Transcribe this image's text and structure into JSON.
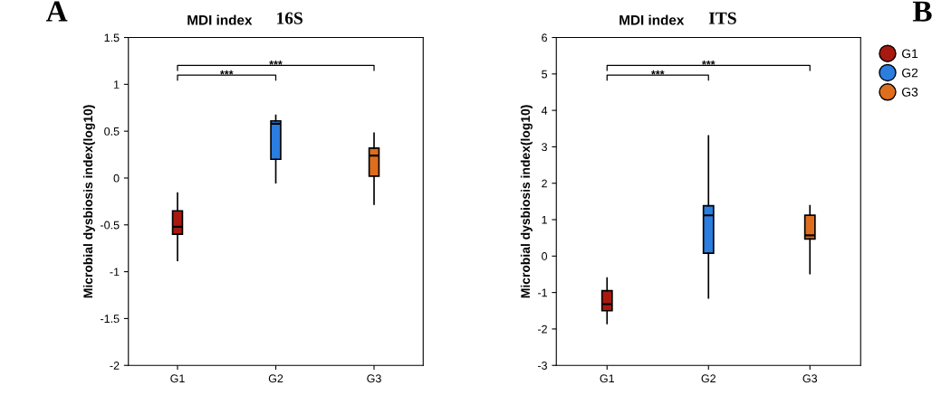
{
  "chart_data": [
    {
      "type": "box",
      "title": "MDI index",
      "subtitle": "16S",
      "ylabel": "Microbial dysbiosis index(log10)",
      "categories": [
        "G1",
        "G2",
        "G3"
      ],
      "ylim": [
        -2,
        1.5
      ],
      "yticks": [
        -2,
        -1.5,
        -1,
        -0.5,
        0,
        0.5,
        1,
        1.5
      ],
      "grid": false,
      "annotations": [
        "A",
        "***",
        "***"
      ],
      "series": [
        {
          "color": "#a81a10",
          "boxes": [
            {
              "low": -0.88,
              "q1": -0.6,
              "median": -0.52,
              "q3": -0.35,
              "high": -0.16
            },
            null,
            null
          ]
        },
        {
          "color": "#2b7de0",
          "boxes": [
            null,
            {
              "low": -0.05,
              "q1": 0.2,
              "median": 0.58,
              "q3": 0.61,
              "high": 0.67
            },
            null
          ]
        },
        {
          "color": "#de6e1e",
          "boxes": [
            null,
            null,
            {
              "low": -0.28,
              "q1": 0.02,
              "median": 0.24,
              "q3": 0.32,
              "high": 0.48
            }
          ]
        }
      ]
    },
    {
      "type": "box",
      "title": "MDI index",
      "subtitle": "ITS",
      "ylabel": "Microbial dysbiosis index(log10)",
      "categories": [
        "G1",
        "G2",
        "G3"
      ],
      "ylim": [
        -3,
        6
      ],
      "yticks": [
        -3,
        -2,
        -1,
        0,
        1,
        2,
        3,
        4,
        5,
        6
      ],
      "grid": false,
      "legend": "right",
      "annotations": [
        "B",
        "***",
        "***"
      ],
      "series": [
        {
          "name": "G1",
          "color": "#a81a10",
          "boxes": [
            {
              "low": -1.85,
              "q1": -1.5,
              "median": -1.32,
              "q3": -0.95,
              "high": -0.6
            },
            null,
            null
          ]
        },
        {
          "name": "G2",
          "color": "#2b7de0",
          "boxes": [
            null,
            {
              "low": -1.15,
              "q1": 0.08,
              "median": 1.12,
              "q3": 1.38,
              "high": 3.3
            },
            null
          ]
        },
        {
          "name": "G3",
          "color": "#de6e1e",
          "boxes": [
            null,
            null,
            {
              "low": -0.48,
              "q1": 0.47,
              "median": 0.57,
              "q3": 1.12,
              "high": 1.38
            }
          ]
        }
      ]
    }
  ]
}
